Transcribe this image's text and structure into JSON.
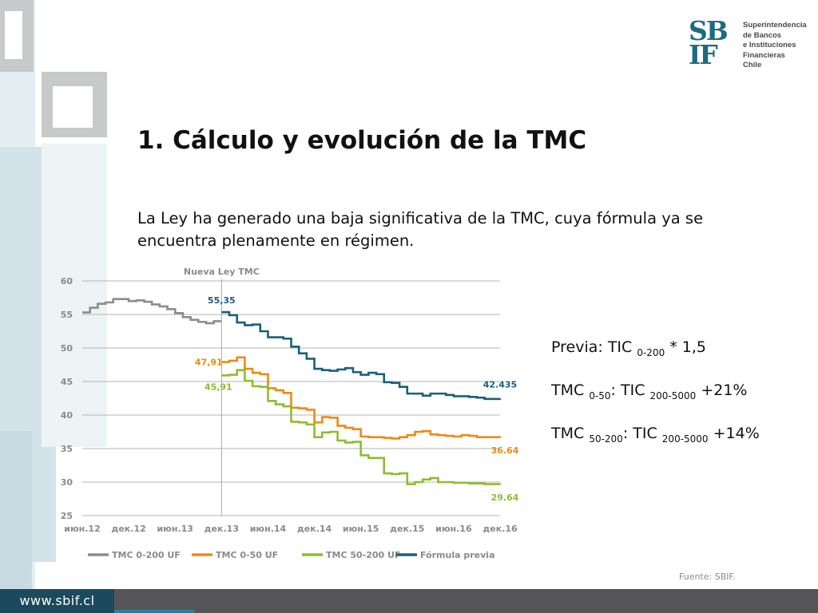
{
  "logo": {
    "mark_top": "SB",
    "mark_bottom": "IF",
    "lines": [
      "Superintendencia",
      "de Bancos",
      "e Instituciones",
      "Financieras",
      "Chile"
    ]
  },
  "title": "1. Cálculo y evolución de la TMC",
  "paragraph": "La Ley ha generado una baja significativa de la TMC, cuya fórmula ya se encuentra plenamente en régimen.",
  "formulas": [
    {
      "lhs": "Previa: TIC ",
      "lhs_sub": "0-200",
      "rhs": " * 1,5",
      "rhs_sub": "",
      "tail": ""
    },
    {
      "lhs": "TMC ",
      "lhs_sub": "0-50",
      "rhs": ":   TIC ",
      "rhs_sub": "200-5000",
      "tail": " +21%"
    },
    {
      "lhs": "TMC ",
      "lhs_sub": "50-200",
      "rhs": ": TIC ",
      "rhs_sub": "200-5000",
      "tail": " +14%"
    }
  ],
  "source": "Fuente: SBIF.",
  "footer_url": "www.sbif.cl",
  "colors": {
    "tmc_0_200": "#8c8c8c",
    "tmc_0_50": "#ef8a13",
    "tmc_50_200": "#8dbd2e",
    "formula_previa": "#18607a",
    "brand": "#1d6b80"
  },
  "chart_data": {
    "type": "line",
    "title": "",
    "ylim": [
      25,
      60
    ],
    "yticks": [
      25,
      30,
      35,
      40,
      45,
      50,
      55,
      60
    ],
    "x_ticks": [
      "июн.12",
      "дек.12",
      "июн.13",
      "дек.13",
      "июн.14",
      "дек.14",
      "июн.15",
      "дек.15",
      "июн.16",
      "дек.16"
    ],
    "x_range_months": [
      0,
      54
    ],
    "annotation_line": {
      "label": "Nueva Ley TMC",
      "x": 18
    },
    "grid": true,
    "legend_position": "bottom",
    "series": [
      {
        "name": "TMC 0-200 UF",
        "color": "#8c8c8c",
        "x": [
          0,
          1,
          2,
          3,
          4,
          5,
          6,
          7,
          8,
          9,
          10,
          11,
          12,
          13,
          14,
          15,
          16,
          17,
          18
        ],
        "y": [
          55.3,
          56.0,
          56.6,
          56.8,
          57.3,
          57.3,
          57.0,
          57.1,
          56.9,
          56.5,
          56.2,
          55.8,
          55.2,
          54.6,
          54.2,
          53.9,
          53.7,
          54.0,
          54.0
        ]
      },
      {
        "name": "TMC 0-50 UF",
        "color": "#ef8a13",
        "x": [
          18,
          19,
          20,
          21,
          22,
          23,
          24,
          25,
          26,
          27,
          28,
          29,
          30,
          31,
          32,
          33,
          34,
          35,
          36,
          37,
          38,
          39,
          40,
          41,
          42,
          43,
          44,
          45,
          46,
          47,
          48,
          49,
          50,
          51,
          52,
          53,
          54
        ],
        "y": [
          47.91,
          48.1,
          48.6,
          46.9,
          46.3,
          46.1,
          44.0,
          43.7,
          43.3,
          41.1,
          41.0,
          40.8,
          38.9,
          39.7,
          39.6,
          38.4,
          38.1,
          37.9,
          36.8,
          36.7,
          36.7,
          36.6,
          36.5,
          36.7,
          37.0,
          37.5,
          37.6,
          37.1,
          37.0,
          36.9,
          36.8,
          37.0,
          36.9,
          36.7,
          36.7,
          36.7,
          36.64
        ]
      },
      {
        "name": "TMC 50-200 UF",
        "color": "#8dbd2e",
        "x": [
          18,
          19,
          20,
          21,
          22,
          23,
          24,
          25,
          26,
          27,
          28,
          29,
          30,
          31,
          32,
          33,
          34,
          35,
          36,
          37,
          38,
          39,
          40,
          41,
          42,
          43,
          44,
          45,
          46,
          47,
          48,
          49,
          50,
          51,
          52,
          53,
          54
        ],
        "y": [
          45.91,
          46.0,
          46.7,
          45.1,
          44.3,
          44.2,
          42.1,
          41.6,
          41.3,
          39.0,
          38.9,
          38.6,
          36.7,
          37.4,
          37.5,
          36.2,
          35.9,
          36.0,
          34.0,
          33.6,
          33.6,
          31.3,
          31.2,
          31.3,
          29.7,
          30.0,
          30.4,
          30.6,
          30.0,
          30.0,
          29.9,
          29.9,
          29.8,
          29.8,
          29.7,
          29.7,
          29.64
        ]
      },
      {
        "name": "Fórmula previa",
        "color": "#18607a",
        "x": [
          18,
          19,
          20,
          21,
          22,
          23,
          24,
          25,
          26,
          27,
          28,
          29,
          30,
          31,
          32,
          33,
          34,
          35,
          36,
          37,
          38,
          39,
          40,
          41,
          42,
          43,
          44,
          45,
          46,
          47,
          48,
          49,
          50,
          51,
          52,
          53,
          54
        ],
        "y": [
          55.35,
          54.9,
          53.8,
          53.4,
          53.5,
          52.5,
          51.6,
          51.6,
          51.4,
          50.2,
          49.2,
          48.4,
          46.9,
          46.7,
          46.6,
          46.8,
          47.0,
          46.4,
          46.0,
          46.3,
          46.1,
          44.9,
          44.8,
          44.2,
          43.2,
          43.2,
          42.9,
          43.2,
          43.2,
          43.0,
          42.8,
          42.8,
          42.7,
          42.6,
          42.4,
          42.4,
          42.435
        ]
      }
    ],
    "data_labels": [
      {
        "series": "Fórmula previa",
        "text": "55,35",
        "x": 18,
        "y": 55.35,
        "dx": 0,
        "dy": -11
      },
      {
        "series": "TMC 0-50 UF",
        "text": "47,91",
        "x": 18,
        "y": 47.91,
        "dx": -16,
        "dy": 4
      },
      {
        "series": "TMC 50-200 UF",
        "text": "45,91",
        "x": 18,
        "y": 45.91,
        "dx": -4,
        "dy": 18
      },
      {
        "series": "Fórmula previa",
        "text": "42.435",
        "x": 54,
        "y": 42.435,
        "dx": 0,
        "dy": -14
      },
      {
        "series": "TMC 0-50 UF",
        "text": "36.64",
        "x": 54,
        "y": 36.64,
        "dx": 6,
        "dy": 20
      },
      {
        "series": "TMC 50-200 UF",
        "text": "29.64",
        "x": 54,
        "y": 29.64,
        "dx": 6,
        "dy": 20
      }
    ]
  }
}
